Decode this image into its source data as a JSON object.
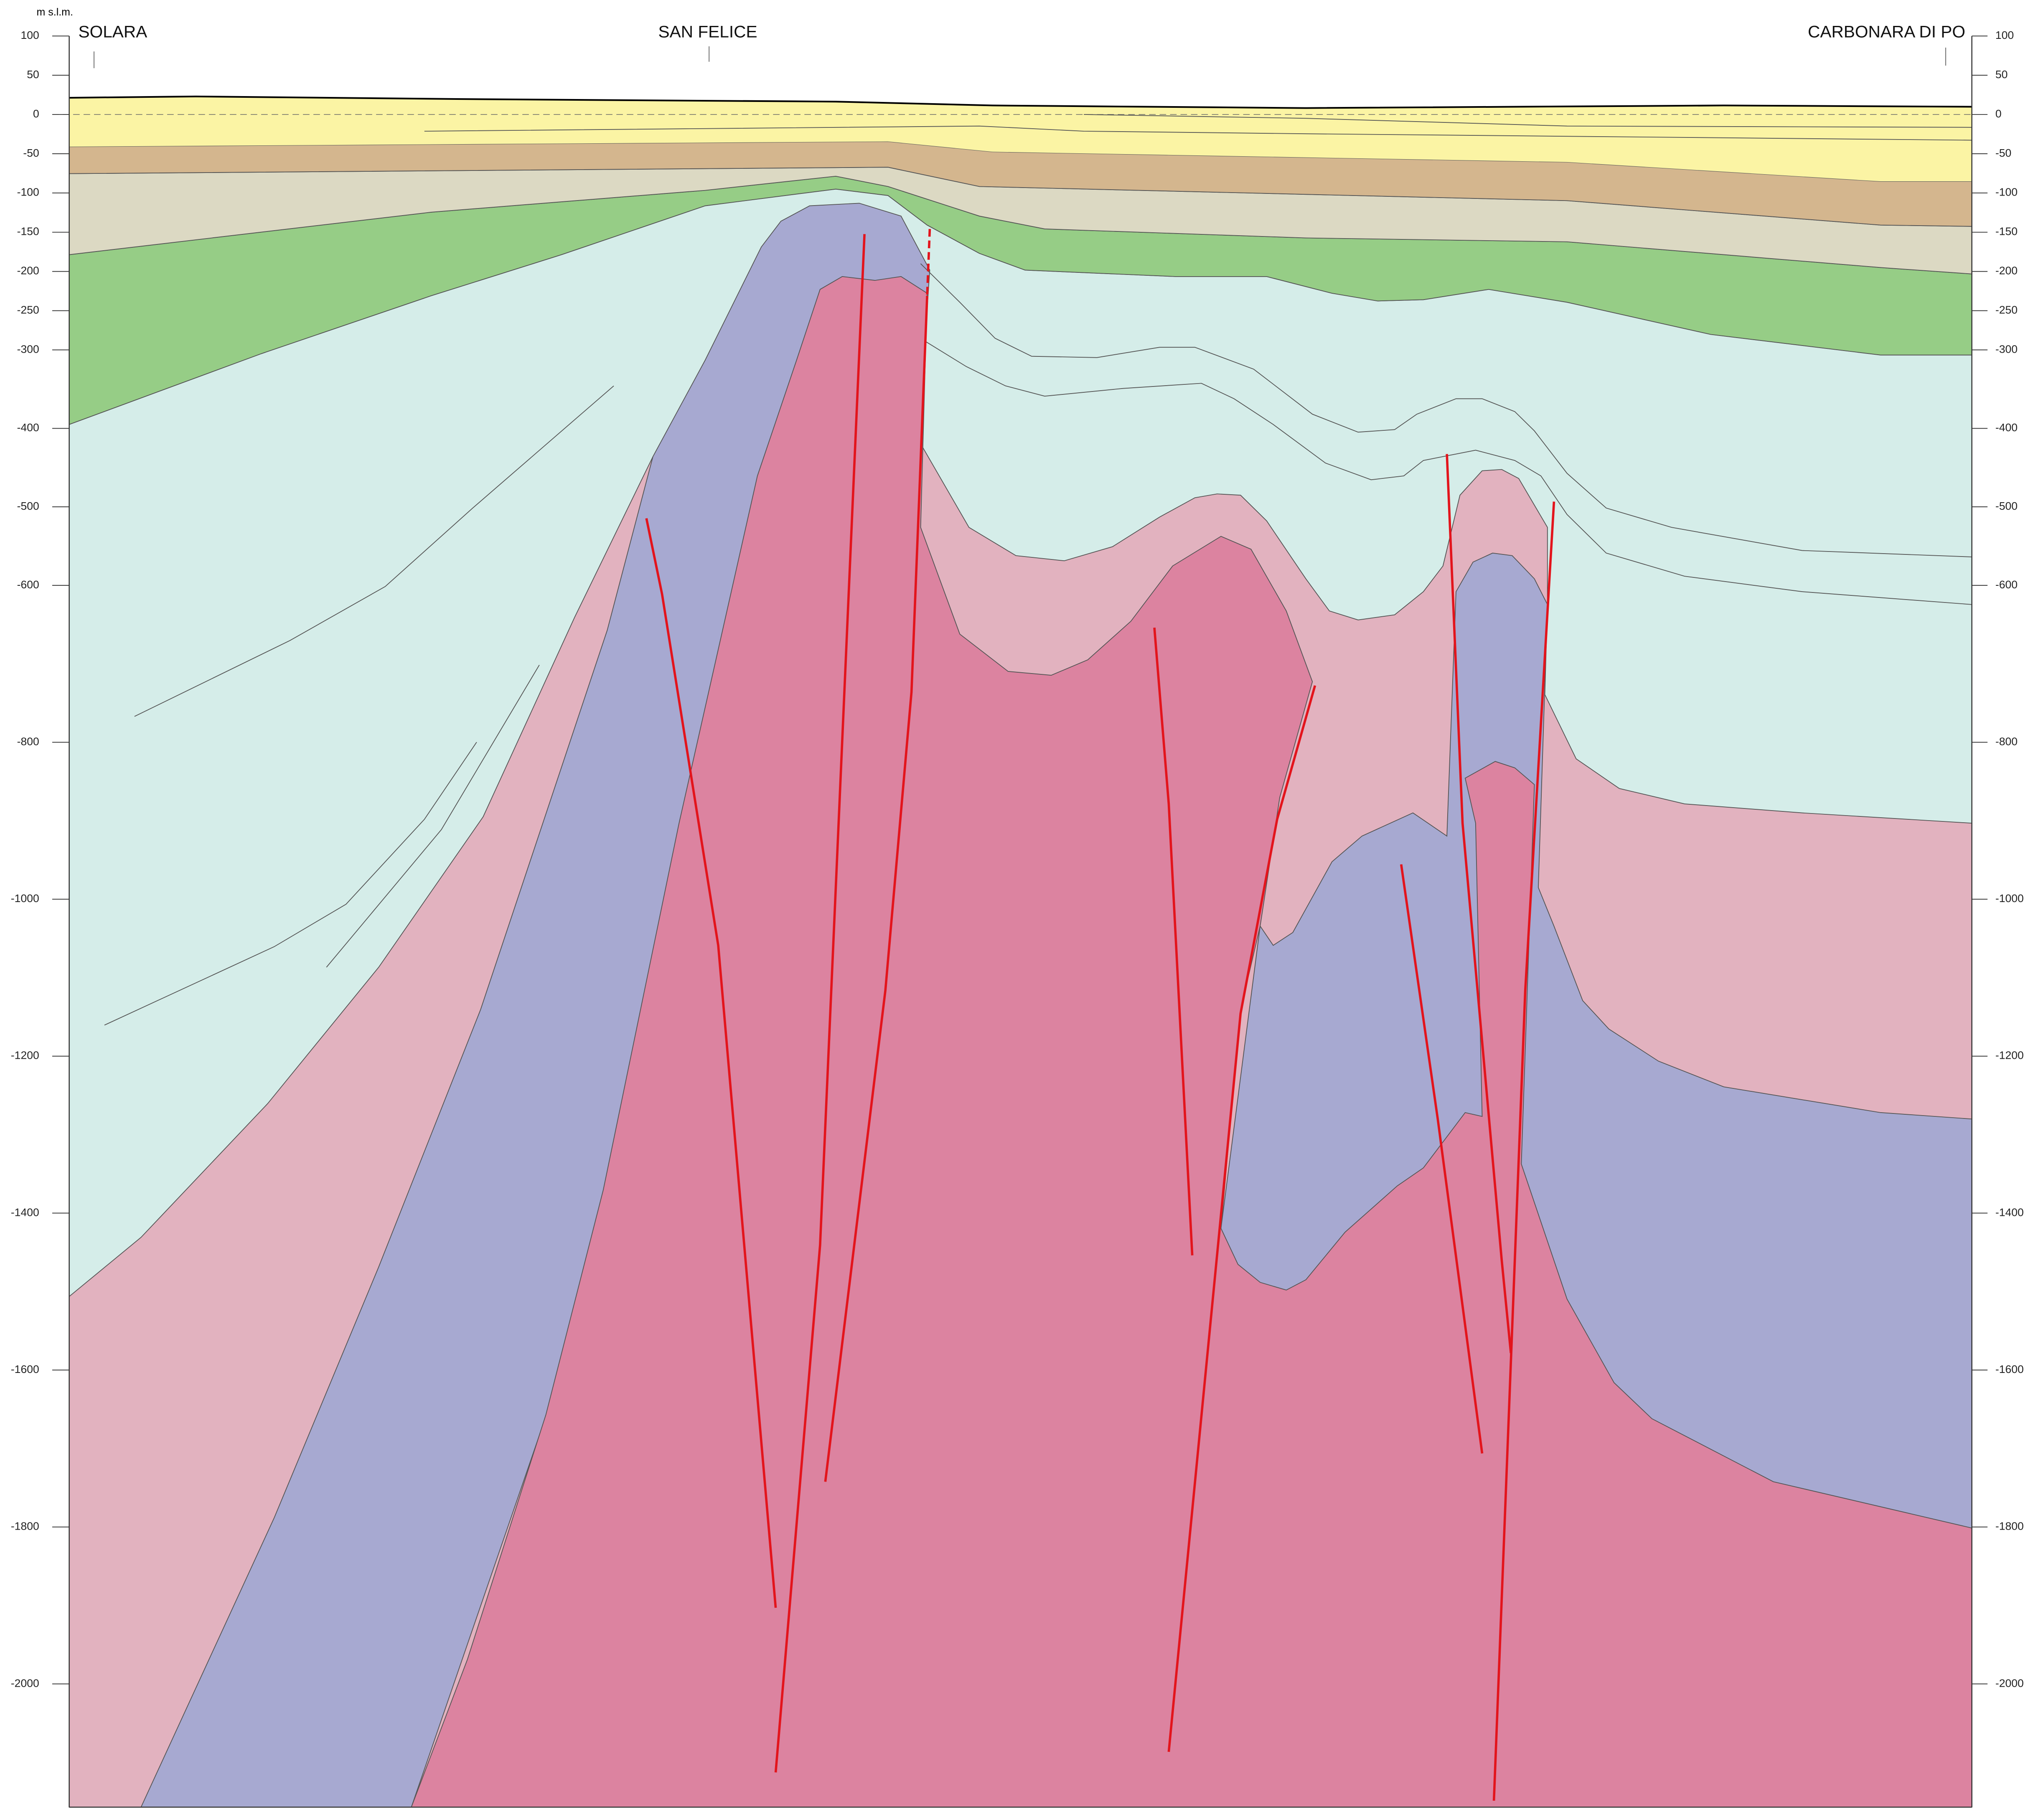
{
  "header": {
    "unit": "m s.l.m."
  },
  "places": [
    "SOLARA",
    "SAN FELICE",
    "CARBONARA DI PO"
  ],
  "axis": {
    "lim": [
      -2157,
      100
    ],
    "ticks": [
      100,
      50,
      0,
      -50,
      -100,
      -150,
      -200,
      -250,
      -300,
      -400,
      -500,
      -600,
      -800,
      -1000,
      -1200,
      -1400,
      -1600,
      -1800,
      -2000
    ]
  }
}
